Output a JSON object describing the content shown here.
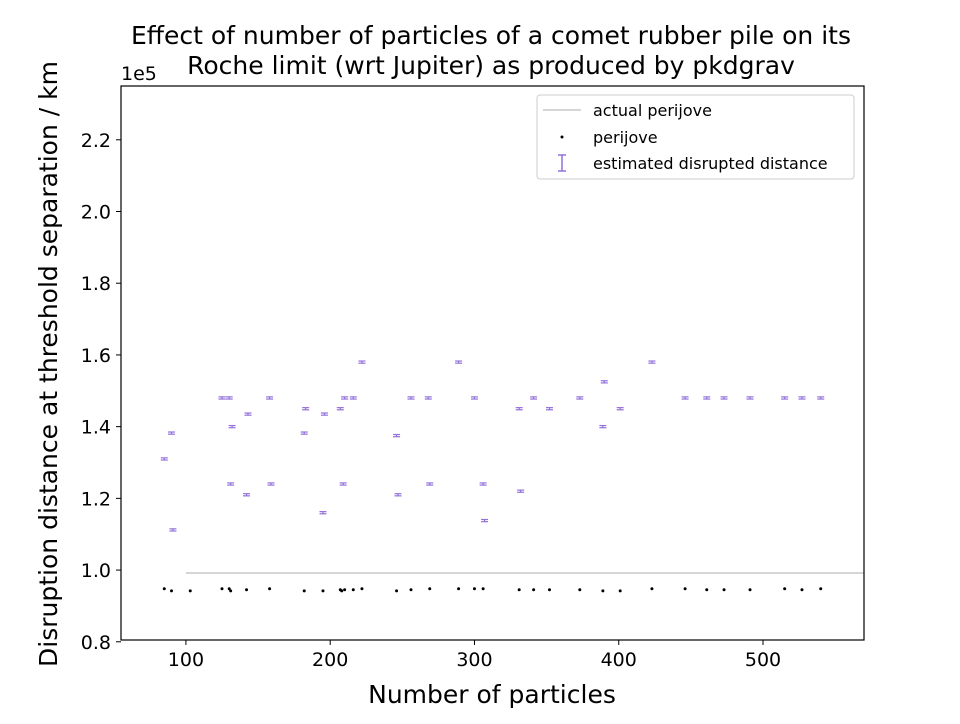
{
  "chart_data": {
    "type": "scatter",
    "title_line1": "Effect of number of particles of a comet rubber pile on its",
    "title_line2": "Roche limit (wrt Jupiter) as produced by pkdgrav",
    "xlabel": "Number of particles",
    "ylabel": "Disruption distance at threshold separation / km",
    "y_scale_label": "1e5",
    "xlim": [
      55,
      570
    ],
    "ylim": [
      80500,
      235000
    ],
    "x_ticks": [
      100,
      200,
      300,
      400,
      500
    ],
    "y_ticks": [
      0.8,
      1.0,
      1.2,
      1.4,
      1.6,
      1.8,
      2.0,
      2.2
    ],
    "y_multiplier": 100000,
    "grid": false,
    "legend_position": "top-right",
    "legend": {
      "actual": "actual perijove",
      "perijove": "perijove",
      "estimate": "estimated disrupted distance"
    },
    "colors": {
      "actual": "#c8c8c8",
      "perijove": "#000000",
      "estimate": "#9370db"
    },
    "series": [
      {
        "name": "actual perijove",
        "kind": "line",
        "x": [
          100,
          570
        ],
        "y": [
          99200,
          99200
        ]
      },
      {
        "name": "perijove",
        "kind": "points",
        "x": [
          85,
          90,
          103,
          125,
          130,
          131,
          142,
          158,
          182,
          195,
          207,
          208,
          210,
          216,
          222,
          246,
          256,
          269,
          289,
          300,
          306,
          331,
          341,
          352,
          373,
          389,
          401,
          423,
          446,
          461,
          473,
          491,
          515,
          527,
          540
        ],
        "y": [
          94800,
          94200,
          94200,
          94800,
          94800,
          94200,
          94500,
          94800,
          94200,
          94200,
          94500,
          94200,
          94500,
          94500,
          94800,
          94200,
          94500,
          94800,
          94800,
          94800,
          94800,
          94500,
          94500,
          94500,
          94500,
          94200,
          94200,
          94800,
          94800,
          94500,
          94500,
          94500,
          94800,
          94500,
          94800
        ]
      },
      {
        "name": "estimated disrupted distance",
        "kind": "errorbar",
        "x": [
          85,
          90,
          91,
          125,
          130,
          131,
          132,
          142,
          143,
          158,
          159,
          182,
          183,
          195,
          196,
          207,
          209,
          210,
          216,
          222,
          246,
          247,
          256,
          268,
          269,
          289,
          300,
          306,
          307,
          331,
          332,
          341,
          352,
          373,
          389,
          390,
          401,
          423,
          446,
          461,
          473,
          491,
          515,
          527,
          540
        ],
        "y": [
          131000,
          138200,
          111200,
          148000,
          148000,
          124000,
          140000,
          121000,
          143500,
          148000,
          124000,
          138200,
          145000,
          116000,
          143500,
          145000,
          124000,
          148000,
          148000,
          158000,
          137500,
          121000,
          148000,
          148000,
          124000,
          158000,
          148000,
          124000,
          113800,
          145000,
          122000,
          148000,
          145000,
          148000,
          140000,
          152500,
          145000,
          158000,
          148000,
          148000,
          148000,
          148000,
          148000,
          148000,
          148000
        ],
        "err": [
          300,
          300,
          300,
          300,
          300,
          300,
          300,
          300,
          300,
          300,
          300,
          300,
          300,
          300,
          300,
          300,
          300,
          300,
          300,
          300,
          300,
          300,
          300,
          300,
          300,
          300,
          300,
          300,
          300,
          300,
          300,
          300,
          300,
          300,
          300,
          300,
          300,
          300,
          300,
          300,
          300,
          300,
          300,
          300,
          300
        ]
      }
    ]
  }
}
